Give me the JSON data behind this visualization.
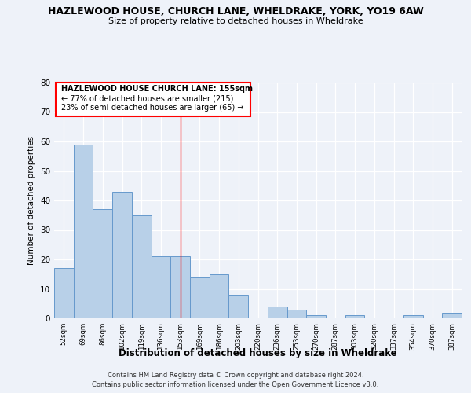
{
  "title": "HAZLEWOOD HOUSE, CHURCH LANE, WHELDRAKE, YORK, YO19 6AW",
  "subtitle": "Size of property relative to detached houses in Wheldrake",
  "xlabel": "Distribution of detached houses by size in Wheldrake",
  "ylabel": "Number of detached properties",
  "bar_labels": [
    "52sqm",
    "69sqm",
    "86sqm",
    "102sqm",
    "119sqm",
    "136sqm",
    "153sqm",
    "169sqm",
    "186sqm",
    "203sqm",
    "220sqm",
    "236sqm",
    "253sqm",
    "270sqm",
    "287sqm",
    "303sqm",
    "320sqm",
    "337sqm",
    "354sqm",
    "370sqm",
    "387sqm"
  ],
  "bar_values": [
    17,
    59,
    37,
    43,
    35,
    21,
    21,
    14,
    15,
    8,
    0,
    4,
    3,
    1,
    0,
    1,
    0,
    0,
    1,
    0,
    2
  ],
  "bar_color": "#b8d0e8",
  "bar_edge_color": "#6699cc",
  "reference_line_x": 6,
  "annotation_title": "HAZLEWOOD HOUSE CHURCH LANE: 155sqm",
  "annotation_line1": "← 77% of detached houses are smaller (215)",
  "annotation_line2": "23% of semi-detached houses are larger (65) →",
  "ylim": [
    0,
    80
  ],
  "yticks": [
    0,
    10,
    20,
    30,
    40,
    50,
    60,
    70,
    80
  ],
  "footer_line1": "Contains HM Land Registry data © Crown copyright and database right 2024.",
  "footer_line2": "Contains public sector information licensed under the Open Government Licence v3.0.",
  "background_color": "#eef2f9"
}
